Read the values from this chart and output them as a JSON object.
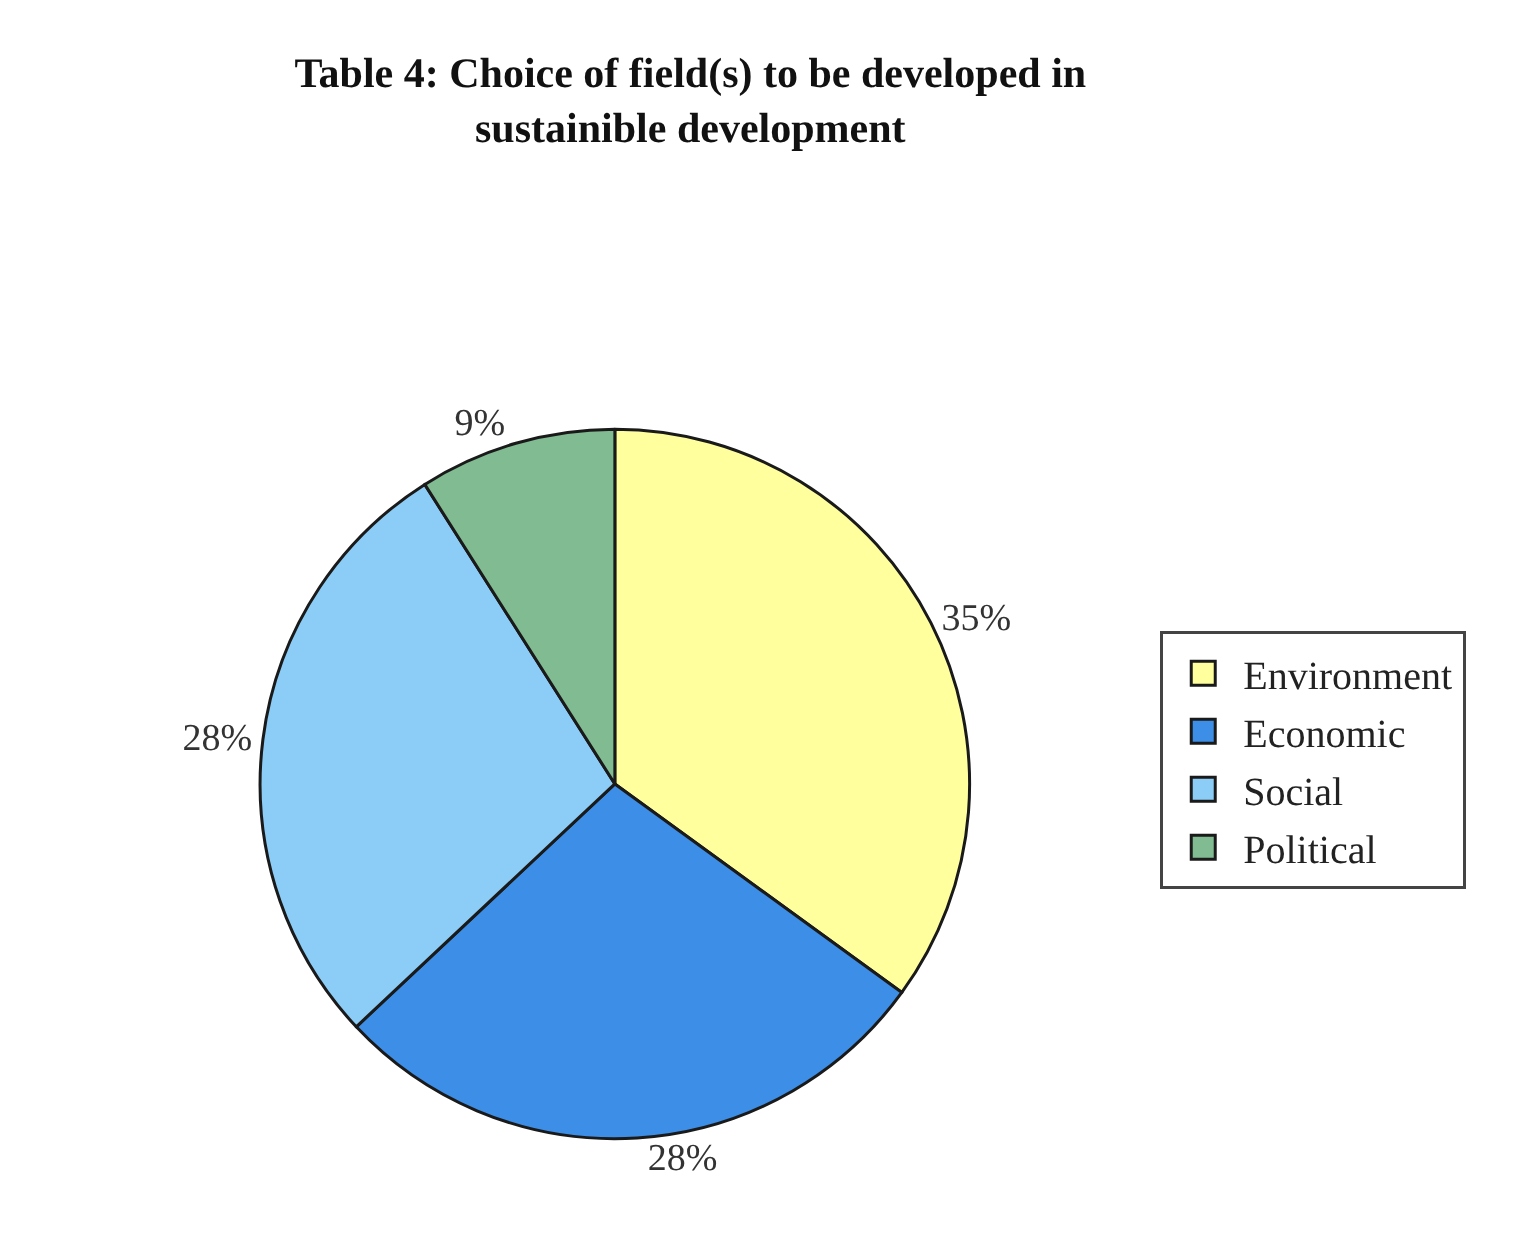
{
  "chart_data": {
    "type": "pie",
    "title": "Table 4: Choice of field(s) to be developed in sustainible development",
    "categories": [
      "Environment",
      "Economic",
      "Social",
      "Political"
    ],
    "values": [
      35,
      28,
      28,
      9
    ],
    "colors": [
      "#ffff9e",
      "#3c8ee6",
      "#8ccdf7",
      "#80bb92"
    ],
    "value_labels": [
      "35%",
      "28%",
      "28%",
      "9%"
    ],
    "legend": "right"
  }
}
